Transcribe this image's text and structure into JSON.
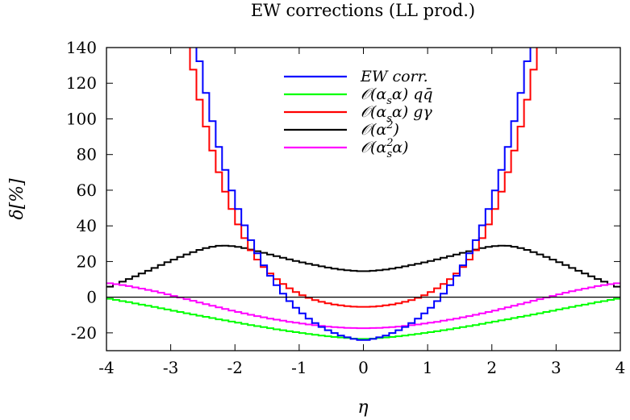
{
  "chart_data": {
    "type": "line",
    "step": true,
    "title": "EW corrections (LL prod.)",
    "xlabel": "η",
    "ylabel": "δ[%]",
    "xlim": [
      -4,
      4
    ],
    "ylim": [
      -30,
      140
    ],
    "xticks": [
      "-4",
      "-3",
      "-2",
      "-1",
      "0",
      "1",
      "2",
      "3",
      "4"
    ],
    "yticks": [
      "-20",
      "0",
      "20",
      "40",
      "60",
      "80",
      "100",
      "120",
      "140"
    ],
    "bin_width": 0.1,
    "x": [
      -3.95,
      -3.85,
      -3.75,
      -3.65,
      -3.55,
      -3.45,
      -3.35,
      -3.25,
      -3.15,
      -3.05,
      -2.95,
      -2.85,
      -2.75,
      -2.65,
      -2.55,
      -2.45,
      -2.35,
      -2.25,
      -2.15,
      -2.05,
      -1.95,
      -1.85,
      -1.75,
      -1.65,
      -1.55,
      -1.45,
      -1.35,
      -1.25,
      -1.15,
      -1.05,
      -0.95,
      -0.85,
      -0.75,
      -0.65,
      -0.55,
      -0.45,
      -0.35,
      -0.25,
      -0.15,
      -0.05,
      0.05,
      0.15,
      0.25,
      0.35,
      0.45,
      0.55,
      0.65,
      0.75,
      0.85,
      0.95,
      1.05,
      1.15,
      1.25,
      1.35,
      1.45,
      1.55,
      1.65,
      1.75,
      1.85,
      1.95,
      2.05,
      2.15,
      2.25,
      2.35,
      2.45,
      2.55,
      2.65,
      2.75,
      2.85,
      2.95,
      3.05,
      3.15,
      3.25,
      3.35,
      3.45,
      3.55,
      3.65,
      3.75,
      3.85,
      3.95
    ],
    "series": [
      {
        "name": "EW corr.",
        "color": "#0000ff",
        "values": [
          null,
          null,
          null,
          null,
          null,
          null,
          null,
          null,
          null,
          null,
          null,
          null,
          null,
          151.9,
          132.3,
          114.6,
          98.7,
          84.3,
          71.4,
          59.9,
          49.5,
          40.3,
          32.0,
          24.6,
          17.9,
          12.0,
          6.7,
          2.0,
          -2.2,
          -5.9,
          -9.1,
          -12.0,
          -14.5,
          -16.7,
          -18.5,
          -20.1,
          -21.5,
          -22.5,
          -23.4,
          -24.0,
          -24.0,
          -23.4,
          -22.5,
          -21.5,
          -20.1,
          -18.5,
          -16.7,
          -14.5,
          -12.0,
          -9.1,
          -5.9,
          -2.2,
          2.0,
          6.7,
          12.0,
          17.9,
          24.6,
          32.0,
          40.3,
          49.5,
          59.9,
          71.4,
          84.3,
          98.7,
          114.6,
          132.3,
          151.9,
          null,
          null,
          null,
          null,
          null,
          null,
          null,
          null,
          null,
          null,
          null,
          null,
          null
        ]
      },
      {
        "name": "O(αsα) qq̄",
        "color": "#00ff00",
        "values": [
          -0.9,
          -1.5,
          -2.2,
          -2.8,
          -3.5,
          -4.2,
          -4.8,
          -5.5,
          -6.2,
          -6.9,
          -7.6,
          -8.3,
          -9.0,
          -9.7,
          -10.4,
          -11.0,
          -11.7,
          -12.4,
          -13.0,
          -13.7,
          -14.3,
          -15.0,
          -15.6,
          -16.2,
          -16.8,
          -17.4,
          -18.0,
          -18.5,
          -19.1,
          -19.6,
          -20.1,
          -20.6,
          -21.1,
          -21.5,
          -21.9,
          -22.3,
          -22.6,
          -22.9,
          -23.2,
          -23.4,
          -23.4,
          -23.2,
          -22.9,
          -22.6,
          -22.3,
          -21.9,
          -21.5,
          -21.1,
          -20.6,
          -20.1,
          -19.6,
          -19.1,
          -18.5,
          -18.0,
          -17.4,
          -16.8,
          -16.2,
          -15.6,
          -15.0,
          -14.3,
          -13.7,
          -13.0,
          -12.4,
          -11.7,
          -11.0,
          -10.4,
          -9.7,
          -9.0,
          -8.3,
          -7.6,
          -6.9,
          -6.2,
          -5.5,
          -4.8,
          -4.2,
          -3.5,
          -2.8,
          -2.2,
          -1.5,
          -0.9
        ]
      },
      {
        "name": "O(αsα) gγ",
        "color": "#ff0000",
        "values": [
          null,
          null,
          null,
          null,
          null,
          null,
          null,
          null,
          null,
          null,
          null,
          null,
          146.3,
          127.6,
          110.8,
          95.7,
          82.2,
          70.1,
          59.2,
          49.5,
          40.8,
          33.1,
          26.3,
          21.1,
          16.9,
          13.3,
          10.1,
          7.4,
          5.0,
          2.9,
          1.1,
          -0.4,
          -1.6,
          -2.6,
          -3.4,
          -4.1,
          -4.6,
          -5.0,
          -5.3,
          -5.4,
          -5.4,
          -5.3,
          -5.0,
          -4.6,
          -4.1,
          -3.4,
          -2.6,
          -1.6,
          -0.4,
          1.1,
          2.9,
          5.0,
          7.4,
          10.1,
          13.3,
          16.9,
          21.1,
          26.3,
          33.1,
          40.8,
          49.5,
          59.2,
          70.1,
          82.2,
          95.7,
          110.8,
          127.6,
          146.3,
          null,
          null,
          null,
          null,
          null,
          null,
          null,
          null,
          null,
          null,
          null,
          null
        ]
      },
      {
        "name": "O(α²)",
        "color": "#000000",
        "values": [
          5.9,
          7.3,
          8.7,
          10.2,
          11.7,
          13.3,
          14.8,
          16.4,
          18.0,
          19.6,
          21.1,
          22.6,
          24.0,
          25.3,
          26.5,
          27.5,
          28.3,
          28.8,
          28.9,
          28.7,
          28.2,
          27.5,
          26.7,
          25.8,
          24.9,
          23.9,
          23.0,
          22.1,
          21.2,
          20.3,
          19.5,
          18.7,
          18.0,
          17.3,
          16.6,
          16.0,
          15.5,
          15.1,
          14.8,
          14.6,
          14.6,
          14.8,
          15.1,
          15.5,
          16.0,
          16.6,
          17.3,
          18.0,
          18.7,
          19.5,
          20.3,
          21.2,
          22.1,
          23.0,
          23.9,
          24.9,
          25.8,
          26.7,
          27.5,
          28.2,
          28.7,
          28.9,
          28.8,
          28.3,
          27.5,
          26.5,
          25.3,
          24.0,
          22.6,
          21.1,
          19.6,
          18.0,
          16.4,
          14.8,
          13.3,
          11.7,
          10.2,
          8.7,
          7.3,
          5.9
        ]
      },
      {
        "name": "O(αs²α)",
        "color": "#ff00ff",
        "values": [
          7.8,
          7.3,
          6.8,
          6.2,
          5.5,
          4.8,
          4.1,
          3.3,
          2.5,
          1.6,
          0.7,
          -0.2,
          -1.1,
          -2.0,
          -3.0,
          -3.9,
          -4.8,
          -5.7,
          -6.6,
          -7.5,
          -8.3,
          -9.1,
          -9.9,
          -10.6,
          -11.3,
          -12.0,
          -12.6,
          -13.2,
          -13.8,
          -14.3,
          -14.8,
          -15.3,
          -15.7,
          -16.1,
          -16.5,
          -16.8,
          -17.0,
          -17.2,
          -17.3,
          -17.4,
          -17.4,
          -17.3,
          -17.2,
          -17.0,
          -16.8,
          -16.5,
          -16.1,
          -15.7,
          -15.3,
          -14.8,
          -14.3,
          -13.8,
          -13.2,
          -12.6,
          -12.0,
          -11.3,
          -10.6,
          -9.9,
          -9.1,
          -8.3,
          -7.5,
          -6.6,
          -5.7,
          -4.8,
          -3.9,
          -3.0,
          -2.0,
          -1.1,
          -0.2,
          0.7,
          1.6,
          2.5,
          3.3,
          4.1,
          4.8,
          5.5,
          6.2,
          6.8,
          7.3,
          7.8
        ]
      }
    ]
  },
  "legend": {
    "entries": [
      {
        "prefix": "",
        "main": "EW corr.",
        "sub": "",
        "sup": "",
        "suffix": ""
      },
      {
        "prefix": "𝒪(",
        "main": "α",
        "sub": "s",
        "sup": "",
        "suffix": "α)   qq̄"
      },
      {
        "prefix": "𝒪(",
        "main": "α",
        "sub": "s",
        "sup": "",
        "suffix": "α)   gγ"
      },
      {
        "prefix": "𝒪(",
        "main": "α",
        "sub": "",
        "sup": "2",
        "suffix": ")"
      },
      {
        "prefix": "𝒪(",
        "main": "α",
        "sub": "s",
        "sup": "2",
        "suffix": "α)"
      }
    ]
  }
}
